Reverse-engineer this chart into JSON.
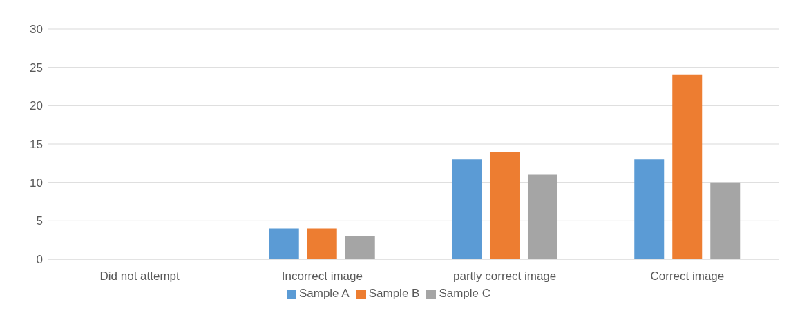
{
  "chart_data": {
    "type": "bar",
    "categories": [
      "Did not attempt",
      "Incorrect image",
      "partly correct image",
      "Correct image"
    ],
    "series": [
      {
        "name": "Sample A",
        "color": "#5b9bd5",
        "values": [
          0,
          4,
          13,
          13
        ]
      },
      {
        "name": "Sample B",
        "color": "#ed7d31",
        "values": [
          0,
          4,
          14,
          24
        ]
      },
      {
        "name": "Sample C",
        "color": "#a5a5a5",
        "values": [
          0,
          3,
          11,
          10
        ]
      }
    ],
    "ylim": [
      0,
      30
    ],
    "yticks": [
      0,
      5,
      10,
      15,
      20,
      25,
      30
    ],
    "grid": "y",
    "legend": "bottom"
  }
}
